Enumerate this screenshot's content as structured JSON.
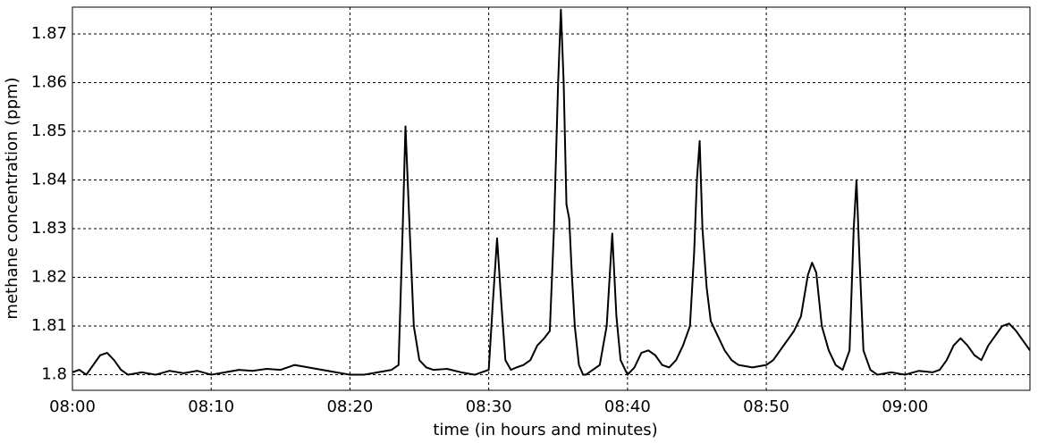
{
  "chart_data": {
    "type": "line",
    "xlabel": "time (in hours and minutes)",
    "ylabel": "methane concentration (ppm)",
    "xlim": [
      0,
      69
    ],
    "ylim": [
      1.7968,
      1.8755
    ],
    "xticks": [
      {
        "value": 0,
        "label": "08:00"
      },
      {
        "value": 10,
        "label": "08:10"
      },
      {
        "value": 20,
        "label": "08:20"
      },
      {
        "value": 30,
        "label": "08:30"
      },
      {
        "value": 40,
        "label": "08:40"
      },
      {
        "value": 50,
        "label": "08:50"
      },
      {
        "value": 60,
        "label": "09:00"
      }
    ],
    "yticks": [
      1.8,
      1.81,
      1.82,
      1.83,
      1.84,
      1.85,
      1.86,
      1.87
    ],
    "grid": true,
    "x": [
      0,
      0.5,
      1,
      1.5,
      2,
      2.5,
      3,
      3.5,
      4,
      5,
      6,
      7,
      8,
      9,
      10,
      11,
      12,
      13,
      14,
      15,
      16,
      17,
      18,
      19,
      20,
      21,
      22,
      23,
      23.5,
      23.8,
      24,
      24.3,
      24.6,
      25,
      25.5,
      26,
      27,
      28,
      29,
      29.5,
      30,
      30.3,
      30.6,
      30.9,
      31.2,
      31.6,
      32,
      32.5,
      33,
      33.5,
      34,
      34.4,
      34.7,
      35,
      35.2,
      35.4,
      35.6,
      35.8,
      36,
      36.2,
      36.5,
      36.8,
      37,
      37.5,
      38,
      38.5,
      38.9,
      39.2,
      39.5,
      40,
      40.5,
      41,
      41.5,
      42,
      42.5,
      43,
      43.5,
      44,
      44.5,
      44.8,
      45,
      45.2,
      45.4,
      45.7,
      46,
      46.5,
      47,
      47.5,
      48,
      49,
      50,
      50.5,
      51,
      51.5,
      52,
      52.5,
      53,
      53.3,
      53.6,
      54,
      54.5,
      55,
      55.5,
      56,
      56.3,
      56.5,
      56.7,
      57,
      57.5,
      58,
      59,
      60,
      61,
      62,
      62.5,
      63,
      63.5,
      64,
      64.5,
      65,
      65.5,
      66,
      66.5,
      67,
      67.5,
      68,
      68.5,
      69
    ],
    "series": [
      {
        "color": "#000000",
        "values": [
          1.8005,
          1.801,
          1.8,
          1.802,
          1.804,
          1.8045,
          1.803,
          1.801,
          1.8,
          1.8005,
          1.8,
          1.8008,
          1.8003,
          1.8008,
          1.8,
          1.8005,
          1.801,
          1.8008,
          1.8012,
          1.801,
          1.802,
          1.8015,
          1.801,
          1.8005,
          1.8,
          1.8,
          1.8005,
          1.801,
          1.802,
          1.83,
          1.851,
          1.83,
          1.81,
          1.803,
          1.8015,
          1.801,
          1.8012,
          1.8005,
          1.8,
          1.8005,
          1.801,
          1.815,
          1.828,
          1.815,
          1.803,
          1.801,
          1.8015,
          1.802,
          1.803,
          1.806,
          1.8075,
          1.809,
          1.83,
          1.86,
          1.875,
          1.86,
          1.835,
          1.832,
          1.82,
          1.81,
          1.802,
          1.8,
          1.8,
          1.801,
          1.802,
          1.81,
          1.829,
          1.812,
          1.803,
          1.8,
          1.8015,
          1.8045,
          1.805,
          1.804,
          1.802,
          1.8015,
          1.803,
          1.806,
          1.81,
          1.825,
          1.84,
          1.848,
          1.83,
          1.818,
          1.811,
          1.808,
          1.805,
          1.803,
          1.802,
          1.8015,
          1.802,
          1.803,
          1.805,
          1.807,
          1.809,
          1.812,
          1.8205,
          1.823,
          1.821,
          1.81,
          1.805,
          1.802,
          1.801,
          1.805,
          1.83,
          1.84,
          1.825,
          1.805,
          1.801,
          1.8,
          1.8005,
          1.8,
          1.8008,
          1.8005,
          1.801,
          1.803,
          1.806,
          1.8075,
          1.806,
          1.804,
          1.803,
          1.806,
          1.808,
          1.81,
          1.8105,
          1.809,
          1.807,
          1.805
        ]
      }
    ]
  }
}
